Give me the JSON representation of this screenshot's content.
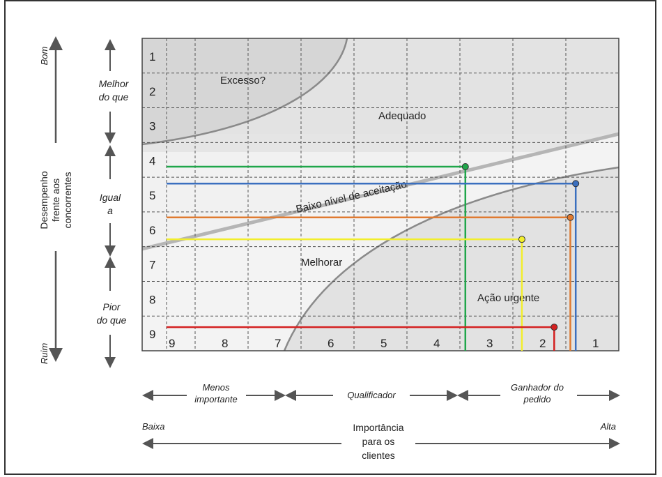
{
  "left_axis": {
    "label_lines": [
      "Desempenho",
      "frente aos",
      "concorrentes"
    ],
    "top": "Bom",
    "bottom": "Ruim"
  },
  "bands": [
    {
      "lines": [
        "Melhor",
        "do que"
      ]
    },
    {
      "lines": [
        "Igual",
        "a"
      ]
    },
    {
      "lines": [
        "Pior",
        "do que"
      ]
    }
  ],
  "row_numbers": [
    "1",
    "2",
    "3",
    "4",
    "5",
    "6",
    "7",
    "8",
    "9"
  ],
  "col_numbers": [
    "9",
    "8",
    "7",
    "6",
    "5",
    "4",
    "3",
    "2",
    "1"
  ],
  "regions": {
    "excesso": "Excesso?",
    "adequado": "Adequado",
    "baixo": "Baixo nível de aceitação",
    "melhorar": "Melhorar",
    "acao": "Ação urgente"
  },
  "bottom_groups": [
    {
      "lines": [
        "Menos",
        "importante"
      ]
    },
    {
      "lines": [
        "Qualificador"
      ]
    },
    {
      "lines": [
        "Ganhador do",
        "pedido"
      ]
    }
  ],
  "bottom_axis": {
    "low": "Baixa",
    "high": "Alta",
    "label_lines": [
      "Importância",
      "para os",
      "clientes"
    ]
  },
  "colors": {
    "green": "#1fa64a",
    "blue": "#3a6fbf",
    "orange": "#e07a30",
    "yellow": "#f2ee2c",
    "red": "#d42020"
  },
  "points": [
    {
      "color": "green",
      "importance": 3.45,
      "performance": 4.25
    },
    {
      "color": "blue",
      "importance": 1.4,
      "performance": 4.75
    },
    {
      "color": "orange",
      "importance": 1.5,
      "performance": 5.75
    },
    {
      "color": "yellow",
      "importance": 2.4,
      "performance": 6.4
    },
    {
      "color": "red",
      "importance": 1.8,
      "performance": 9.0
    }
  ]
}
